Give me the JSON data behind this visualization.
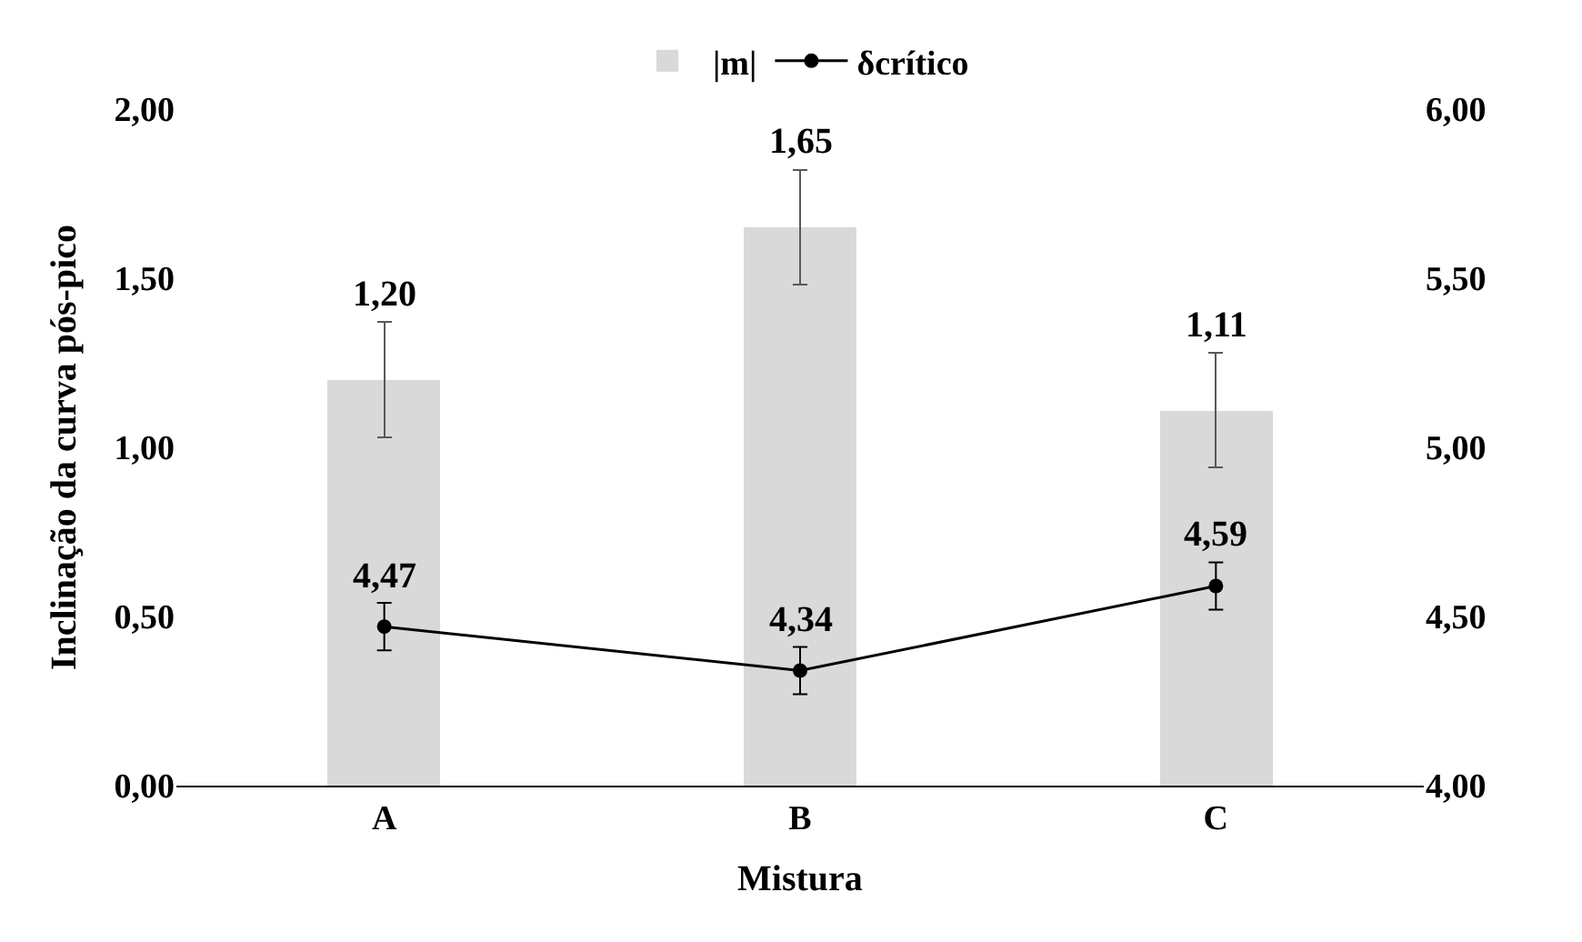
{
  "chart_data": {
    "type": "bar",
    "xlabel": "Mistura",
    "ylabel": "Inclinação da curva pós-pico",
    "categories": [
      "A",
      "B",
      "C"
    ],
    "series": [
      {
        "name": "|m|",
        "color": "#d9d9d9",
        "values": [
          1.2,
          1.65,
          1.11
        ],
        "errors": [
          0.17,
          0.17,
          0.17
        ],
        "value_labels": [
          "1,20",
          "1,65",
          "1,11"
        ]
      },
      {
        "name": "δcrítico",
        "type": "line",
        "axis": "y2",
        "color": "#000000",
        "values": [
          4.47,
          4.34,
          4.59
        ],
        "errors": [
          0.07,
          0.07,
          0.07
        ],
        "value_labels": [
          "4,47",
          "4,34",
          "4,59"
        ]
      }
    ],
    "ylim": [
      0,
      2
    ],
    "yticks": [
      {
        "value": 0,
        "label": "0,00"
      },
      {
        "value": 0.5,
        "label": "0,50"
      },
      {
        "value": 1,
        "label": "1,00"
      },
      {
        "value": 1.5,
        "label": "1,50"
      },
      {
        "value": 2,
        "label": "2,00"
      }
    ],
    "y2lim": [
      4,
      6
    ],
    "y2ticks": [
      {
        "value": 4,
        "label": "4,00"
      },
      {
        "value": 4.5,
        "label": "4,50"
      },
      {
        "value": 5,
        "label": "5,00"
      },
      {
        "value": 5.5,
        "label": "5,50"
      },
      {
        "value": 6,
        "label": "6,00"
      }
    ],
    "legend": "top",
    "marker": "circle",
    "line_style": "solid"
  }
}
